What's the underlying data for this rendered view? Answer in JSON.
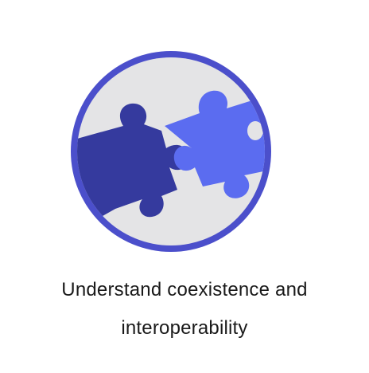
{
  "icon": {
    "name": "puzzle-pieces-icon",
    "ring_color": "#4B4FCB",
    "background_color": "#E4E4E6",
    "piece_left_color": "#353A9E",
    "piece_right_color": "#5B6CF0"
  },
  "caption": {
    "line1": "Understand coexistence and",
    "line2": "interoperability"
  }
}
